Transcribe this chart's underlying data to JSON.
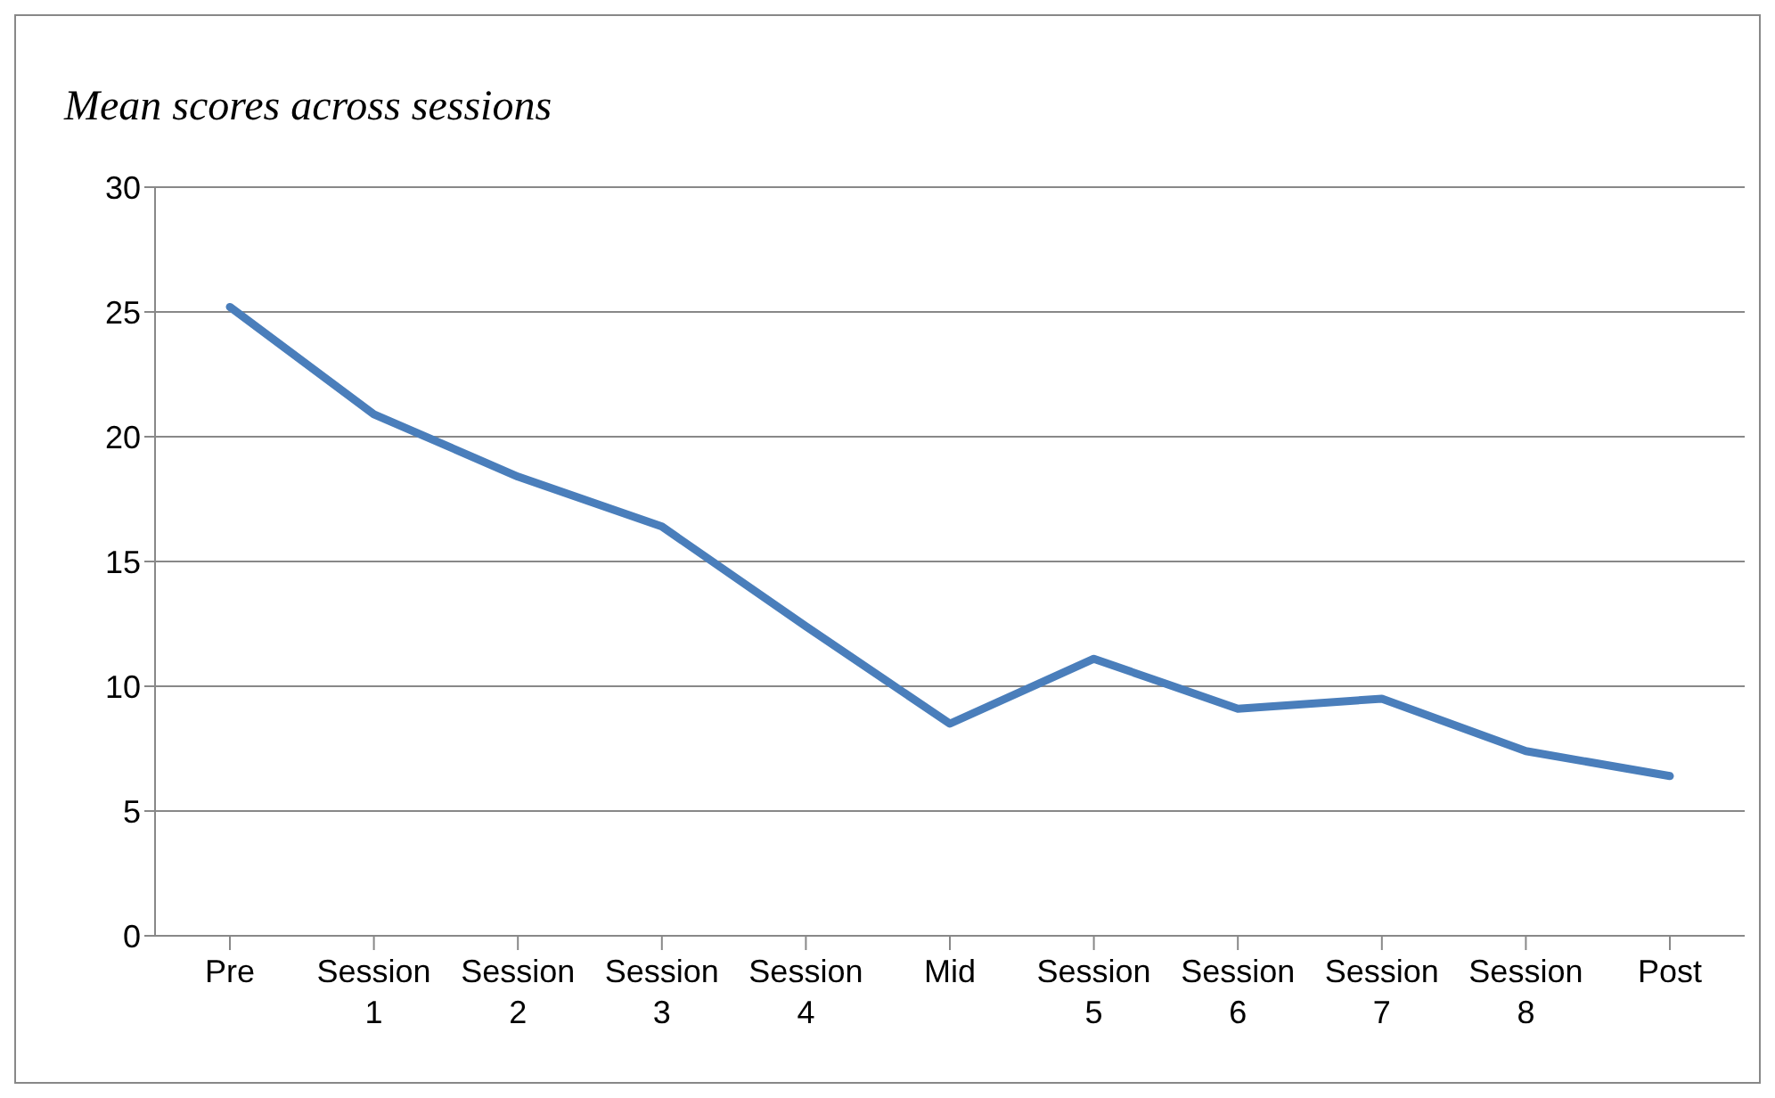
{
  "chart_data": {
    "type": "line",
    "title": "Mean scores across sessions",
    "categories": [
      "Pre",
      "Session 1",
      "Session 2",
      "Session 3",
      "Session 4",
      "Mid",
      "Session 5",
      "Session 6",
      "Session 7",
      "Session 8",
      "Post"
    ],
    "series": [
      {
        "color": "#4a7ebb",
        "values": [
          25.2,
          20.9,
          18.4,
          16.4,
          12.4,
          8.5,
          11.1,
          9.1,
          9.5,
          7.4,
          6.4
        ]
      }
    ],
    "ylim": [
      0,
      30
    ],
    "yticks": [
      0,
      5,
      10,
      15,
      20,
      25,
      30
    ],
    "grid": "y",
    "legend": false,
    "marker": "none",
    "line_style": "solid"
  }
}
